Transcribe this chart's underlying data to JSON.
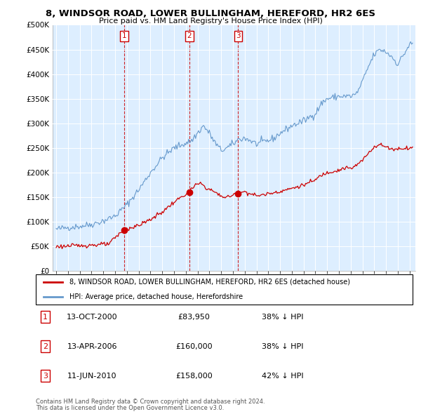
{
  "title1": "8, WINDSOR ROAD, LOWER BULLINGHAM, HEREFORD, HR2 6ES",
  "title2": "Price paid vs. HM Land Registry's House Price Index (HPI)",
  "ylabel_ticks": [
    "£0",
    "£50K",
    "£100K",
    "£150K",
    "£200K",
    "£250K",
    "£300K",
    "£350K",
    "£400K",
    "£450K",
    "£500K"
  ],
  "ytick_vals": [
    0,
    50000,
    100000,
    150000,
    200000,
    250000,
    300000,
    350000,
    400000,
    450000,
    500000
  ],
  "xlim_start": 1994.7,
  "xlim_end": 2025.5,
  "ylim_min": 0,
  "ylim_max": 500000,
  "sale_color": "#cc0000",
  "hpi_color": "#6699cc",
  "chart_bg": "#ddeeff",
  "sale_label": "8, WINDSOR ROAD, LOWER BULLINGHAM, HEREFORD, HR2 6ES (detached house)",
  "hpi_label": "HPI: Average price, detached house, Herefordshire",
  "transactions": [
    {
      "num": 1,
      "date": "13-OCT-2000",
      "price": 83950,
      "pct": "38%",
      "x_year": 2000.79
    },
    {
      "num": 2,
      "date": "13-APR-2006",
      "price": 160000,
      "pct": "38%",
      "x_year": 2006.29
    },
    {
      "num": 3,
      "date": "11-JUN-2010",
      "price": 158000,
      "pct": "42%",
      "x_year": 2010.45
    }
  ],
  "footnote1": "Contains HM Land Registry data © Crown copyright and database right 2024.",
  "footnote2": "This data is licensed under the Open Government Licence v3.0.",
  "hpi_anchors": [
    [
      1995.0,
      85000
    ],
    [
      1996.0,
      89000
    ],
    [
      1997.0,
      91000
    ],
    [
      1998.0,
      95000
    ],
    [
      1999.0,
      102000
    ],
    [
      2000.0,
      112000
    ],
    [
      2001.0,
      135000
    ],
    [
      2002.0,
      165000
    ],
    [
      2003.0,
      200000
    ],
    [
      2004.0,
      230000
    ],
    [
      2005.0,
      250000
    ],
    [
      2006.0,
      260000
    ],
    [
      2006.5,
      265000
    ],
    [
      2007.0,
      280000
    ],
    [
      2007.5,
      295000
    ],
    [
      2008.0,
      280000
    ],
    [
      2008.5,
      260000
    ],
    [
      2009.0,
      245000
    ],
    [
      2009.5,
      250000
    ],
    [
      2010.0,
      258000
    ],
    [
      2010.5,
      268000
    ],
    [
      2011.0,
      270000
    ],
    [
      2011.5,
      265000
    ],
    [
      2012.0,
      258000
    ],
    [
      2012.5,
      262000
    ],
    [
      2013.0,
      265000
    ],
    [
      2013.5,
      270000
    ],
    [
      2014.0,
      280000
    ],
    [
      2015.0,
      295000
    ],
    [
      2016.0,
      305000
    ],
    [
      2017.0,
      320000
    ],
    [
      2017.5,
      340000
    ],
    [
      2018.0,
      350000
    ],
    [
      2019.0,
      355000
    ],
    [
      2020.0,
      355000
    ],
    [
      2020.5,
      360000
    ],
    [
      2021.0,
      385000
    ],
    [
      2021.5,
      415000
    ],
    [
      2022.0,
      440000
    ],
    [
      2022.5,
      450000
    ],
    [
      2023.0,
      445000
    ],
    [
      2023.5,
      435000
    ],
    [
      2024.0,
      420000
    ],
    [
      2024.5,
      440000
    ],
    [
      2025.0,
      460000
    ],
    [
      2025.3,
      462000
    ]
  ],
  "pp_anchors": [
    [
      1995.0,
      50000
    ],
    [
      1996.0,
      51000
    ],
    [
      1997.0,
      52000
    ],
    [
      1998.0,
      53000
    ],
    [
      1999.5,
      55000
    ],
    [
      2000.0,
      68000
    ],
    [
      2000.79,
      83950
    ],
    [
      2001.2,
      87000
    ],
    [
      2002.0,
      93000
    ],
    [
      2003.0,
      105000
    ],
    [
      2004.0,
      120000
    ],
    [
      2005.0,
      140000
    ],
    [
      2005.8,
      153000
    ],
    [
      2006.29,
      160000
    ],
    [
      2006.8,
      175000
    ],
    [
      2007.3,
      178000
    ],
    [
      2007.8,
      168000
    ],
    [
      2008.3,
      163000
    ],
    [
      2008.8,
      155000
    ],
    [
      2009.3,
      150000
    ],
    [
      2009.8,
      152000
    ],
    [
      2010.45,
      158000
    ],
    [
      2010.8,
      160000
    ],
    [
      2011.0,
      162000
    ],
    [
      2011.5,
      157000
    ],
    [
      2012.0,
      153000
    ],
    [
      2012.5,
      155000
    ],
    [
      2013.0,
      157000
    ],
    [
      2013.5,
      160000
    ],
    [
      2014.0,
      162000
    ],
    [
      2015.0,
      168000
    ],
    [
      2016.0,
      175000
    ],
    [
      2017.0,
      185000
    ],
    [
      2017.5,
      195000
    ],
    [
      2018.0,
      200000
    ],
    [
      2018.5,
      203000
    ],
    [
      2019.0,
      205000
    ],
    [
      2019.5,
      210000
    ],
    [
      2020.0,
      208000
    ],
    [
      2020.5,
      215000
    ],
    [
      2021.0,
      225000
    ],
    [
      2021.5,
      240000
    ],
    [
      2022.0,
      253000
    ],
    [
      2022.5,
      257000
    ],
    [
      2023.0,
      252000
    ],
    [
      2023.5,
      248000
    ],
    [
      2024.0,
      248000
    ],
    [
      2024.5,
      250000
    ],
    [
      2025.0,
      250000
    ],
    [
      2025.3,
      251000
    ]
  ]
}
